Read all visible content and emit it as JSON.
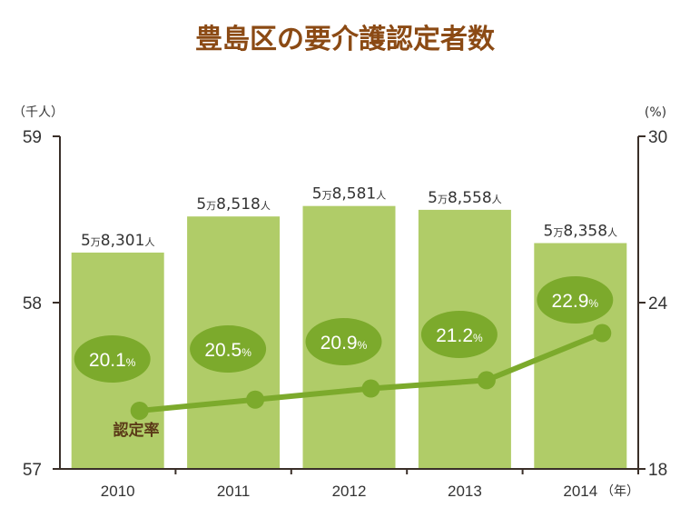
{
  "chart_data": {
    "type": "bar",
    "title": "豊島区の要介護認定者数",
    "left_unit": "（千人）",
    "right_unit": "(%)",
    "x_unit": "（年）",
    "categories": [
      "2010",
      "2011",
      "2012",
      "2013",
      "2014"
    ],
    "left_axis": {
      "ticks": [
        "59",
        "58",
        "57"
      ],
      "ylim": [
        57,
        59
      ]
    },
    "right_axis": {
      "ticks": [
        "30",
        "24",
        "18"
      ],
      "ylim": [
        18,
        30
      ]
    },
    "series": [
      {
        "kind": "bar",
        "values": [
          58.301,
          58.518,
          58.581,
          58.558,
          58.358
        ],
        "label_parts": [
          [
            "5",
            "万",
            "8,301",
            "人"
          ],
          [
            "5",
            "万",
            "8,518",
            "人"
          ],
          [
            "5",
            "万",
            "8,581",
            "人"
          ],
          [
            "5",
            "万",
            "8,558",
            "人"
          ],
          [
            "5",
            "万",
            "8,358",
            "人"
          ]
        ]
      },
      {
        "kind": "line",
        "name": "認定率",
        "values": [
          20.1,
          20.5,
          20.9,
          21.2,
          22.9
        ],
        "label_parts": [
          [
            "20.1",
            "%"
          ],
          [
            "20.5",
            "%"
          ],
          [
            "20.9",
            "%"
          ],
          [
            "21.2",
            "%"
          ],
          [
            "22.9",
            "%"
          ]
        ]
      }
    ],
    "colors": {
      "title": "#8b4a14",
      "bar": "#b0cc68",
      "line": "#7caa2c",
      "bubble": "#7caa2c",
      "axis": "#3a2f29",
      "series_label": "#5b3a18"
    }
  }
}
